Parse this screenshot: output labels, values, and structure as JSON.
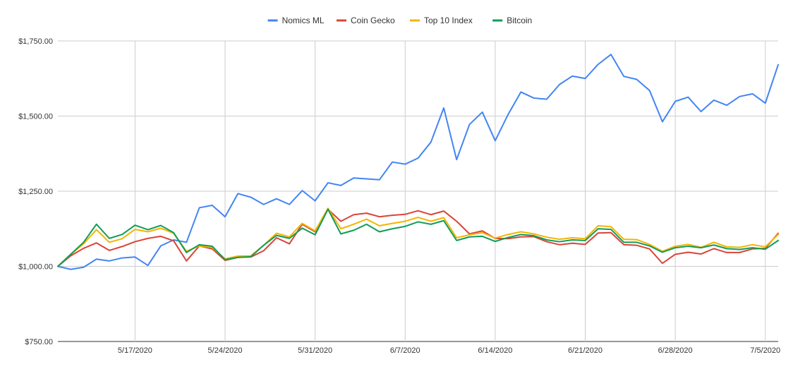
{
  "chart_data": {
    "type": "line",
    "title": "",
    "xlabel": "",
    "ylabel": "",
    "ylim": [
      750,
      1750
    ],
    "y_ticks": [
      {
        "value": 750,
        "label": "$750.00"
      },
      {
        "value": 1000,
        "label": "$1,000.00"
      },
      {
        "value": 1250,
        "label": "$1,250.00"
      },
      {
        "value": 1500,
        "label": "$1,500.00"
      },
      {
        "value": 1750,
        "label": "$1,750.00"
      }
    ],
    "x_ticks": [
      {
        "index": 6,
        "label": "5/17/2020"
      },
      {
        "index": 13,
        "label": "5/24/2020"
      },
      {
        "index": 20,
        "label": "5/31/2020"
      },
      {
        "index": 27,
        "label": "6/7/2020"
      },
      {
        "index": 34,
        "label": "6/14/2020"
      },
      {
        "index": 41,
        "label": "6/21/2020"
      },
      {
        "index": 48,
        "label": "6/28/2020"
      },
      {
        "index": 55,
        "label": "7/5/2020"
      }
    ],
    "x_start": "5/11/2020",
    "x_end": "7/6/2020",
    "grid": true,
    "legend_position": "top",
    "series": [
      {
        "name": "Nomics ML",
        "color": "#4285F4",
        "values": [
          1000,
          990,
          997,
          1024,
          1018,
          1028,
          1031,
          1003,
          1068,
          1088,
          1080,
          1195,
          1203,
          1165,
          1242,
          1230,
          1206,
          1225,
          1206,
          1252,
          1218,
          1278,
          1269,
          1294,
          1291,
          1288,
          1347,
          1340,
          1360,
          1413,
          1527,
          1355,
          1472,
          1513,
          1418,
          1505,
          1580,
          1560,
          1556,
          1605,
          1633,
          1625,
          1672,
          1705,
          1632,
          1622,
          1585,
          1481,
          1549,
          1563,
          1515,
          1553,
          1536,
          1565,
          1574,
          1543,
          1671
        ]
      },
      {
        "name": "Coin Gecko",
        "color": "#DB4437",
        "values": [
          1000,
          1035,
          1060,
          1078,
          1053,
          1066,
          1082,
          1093,
          1100,
          1085,
          1018,
          1068,
          1058,
          1020,
          1030,
          1031,
          1052,
          1095,
          1075,
          1140,
          1115,
          1190,
          1150,
          1172,
          1177,
          1165,
          1170,
          1173,
          1185,
          1172,
          1184,
          1150,
          1108,
          1118,
          1093,
          1092,
          1098,
          1099,
          1082,
          1072,
          1077,
          1073,
          1111,
          1112,
          1072,
          1070,
          1058,
          1010,
          1040,
          1047,
          1041,
          1059,
          1046,
          1046,
          1058,
          1060,
          1110
        ]
      },
      {
        "name": "Top 10 Index",
        "color": "#F4B400",
        "values": [
          1000,
          1040,
          1075,
          1122,
          1080,
          1092,
          1123,
          1115,
          1127,
          1110,
          1050,
          1068,
          1063,
          1025,
          1034,
          1035,
          1070,
          1110,
          1098,
          1143,
          1118,
          1193,
          1125,
          1140,
          1157,
          1135,
          1143,
          1150,
          1163,
          1150,
          1162,
          1095,
          1105,
          1112,
          1094,
          1106,
          1115,
          1108,
          1097,
          1090,
          1095,
          1092,
          1135,
          1132,
          1090,
          1089,
          1073,
          1050,
          1067,
          1073,
          1063,
          1080,
          1065,
          1063,
          1072,
          1065,
          1106
        ]
      },
      {
        "name": "Bitcoin",
        "color": "#0F9D58",
        "values": [
          1000,
          1040,
          1080,
          1140,
          1093,
          1106,
          1137,
          1122,
          1136,
          1112,
          1046,
          1072,
          1067,
          1022,
          1030,
          1032,
          1070,
          1103,
          1093,
          1127,
          1105,
          1190,
          1108,
          1120,
          1140,
          1115,
          1125,
          1133,
          1148,
          1140,
          1152,
          1086,
          1098,
          1100,
          1083,
          1096,
          1106,
          1102,
          1088,
          1082,
          1088,
          1086,
          1125,
          1123,
          1080,
          1080,
          1068,
          1047,
          1062,
          1067,
          1062,
          1071,
          1059,
          1056,
          1062,
          1057,
          1086
        ]
      }
    ]
  }
}
